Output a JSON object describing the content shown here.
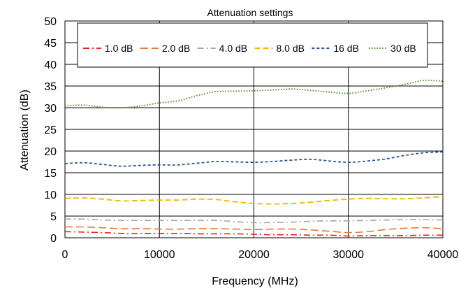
{
  "chart_data": {
    "type": "line",
    "title": "",
    "xlabel": "Frequency (MHz)",
    "ylabel": "Attenuation (dB)",
    "xlim": [
      0,
      40000
    ],
    "ylim": [
      0,
      50
    ],
    "x_ticks": [
      "0",
      "10000",
      "20000",
      "30000",
      "40000"
    ],
    "y_ticks": [
      "0",
      "5",
      "10",
      "15",
      "20",
      "25",
      "30",
      "35",
      "40",
      "45",
      "50"
    ],
    "grid": true,
    "legend": {
      "title": "Attenuation settings",
      "placement": "top-center"
    },
    "series": [
      {
        "name": "1.0 dB",
        "color": "#e8221c",
        "dash": "dash-dot",
        "points": [
          [
            0,
            1.4
          ],
          [
            2000,
            1.3
          ],
          [
            4000,
            1.2
          ],
          [
            6000,
            1.0
          ],
          [
            8000,
            1.0
          ],
          [
            10000,
            1.0
          ],
          [
            12000,
            1.0
          ],
          [
            14000,
            0.9
          ],
          [
            16000,
            0.9
          ],
          [
            18000,
            0.9
          ],
          [
            20000,
            0.8
          ],
          [
            22000,
            0.7
          ],
          [
            24000,
            0.7
          ],
          [
            26000,
            0.6
          ],
          [
            28000,
            0.6
          ],
          [
            30000,
            0.4
          ],
          [
            32000,
            0.5
          ],
          [
            34000,
            0.5
          ],
          [
            36000,
            0.5
          ],
          [
            38000,
            0.6
          ],
          [
            40000,
            0.6
          ]
        ]
      },
      {
        "name": "2.0 dB",
        "color": "#e07b39",
        "dash": "long-dash",
        "points": [
          [
            0,
            2.5
          ],
          [
            2000,
            2.5
          ],
          [
            4000,
            2.3
          ],
          [
            6000,
            2.1
          ],
          [
            8000,
            2.1
          ],
          [
            10000,
            2.0
          ],
          [
            12000,
            2.0
          ],
          [
            14000,
            2.1
          ],
          [
            16000,
            2.1
          ],
          [
            18000,
            2.0
          ],
          [
            20000,
            1.9
          ],
          [
            22000,
            2.0
          ],
          [
            24000,
            2.0
          ],
          [
            26000,
            1.8
          ],
          [
            28000,
            1.5
          ],
          [
            30000,
            1.2
          ],
          [
            32000,
            1.4
          ],
          [
            34000,
            1.9
          ],
          [
            36000,
            2.2
          ],
          [
            38000,
            2.3
          ],
          [
            40000,
            2.1
          ]
        ]
      },
      {
        "name": "4.0 dB",
        "color": "#a6a6a6",
        "dash": "dash-dot",
        "points": [
          [
            0,
            4.3
          ],
          [
            2000,
            4.3
          ],
          [
            4000,
            4.1
          ],
          [
            6000,
            4.0
          ],
          [
            8000,
            4.0
          ],
          [
            10000,
            4.0
          ],
          [
            12000,
            4.0
          ],
          [
            14000,
            4.0
          ],
          [
            16000,
            4.0
          ],
          [
            18000,
            3.7
          ],
          [
            20000,
            3.5
          ],
          [
            22000,
            3.5
          ],
          [
            24000,
            3.6
          ],
          [
            26000,
            3.8
          ],
          [
            28000,
            3.9
          ],
          [
            30000,
            3.9
          ],
          [
            32000,
            4.0
          ],
          [
            34000,
            4.1
          ],
          [
            36000,
            4.2
          ],
          [
            38000,
            4.2
          ],
          [
            40000,
            4.1
          ]
        ]
      },
      {
        "name": "8.0 dB",
        "color": "#f2b600",
        "dash": "dash",
        "points": [
          [
            0,
            9.1
          ],
          [
            2000,
            9.2
          ],
          [
            4000,
            8.9
          ],
          [
            6000,
            8.5
          ],
          [
            8000,
            8.6
          ],
          [
            10000,
            8.7
          ],
          [
            12000,
            8.7
          ],
          [
            14000,
            8.9
          ],
          [
            16000,
            8.8
          ],
          [
            18000,
            8.3
          ],
          [
            20000,
            7.9
          ],
          [
            22000,
            7.8
          ],
          [
            24000,
            7.9
          ],
          [
            26000,
            8.2
          ],
          [
            28000,
            8.6
          ],
          [
            30000,
            8.9
          ],
          [
            32000,
            9.1
          ],
          [
            34000,
            9.0
          ],
          [
            36000,
            9.0
          ],
          [
            38000,
            9.2
          ],
          [
            40000,
            9.5
          ]
        ]
      },
      {
        "name": "16 dB",
        "color": "#2e5597",
        "dash": "short-dash",
        "points": [
          [
            0,
            17.1
          ],
          [
            2000,
            17.3
          ],
          [
            4000,
            16.9
          ],
          [
            6000,
            16.5
          ],
          [
            8000,
            16.7
          ],
          [
            10000,
            16.8
          ],
          [
            12000,
            16.8
          ],
          [
            14000,
            17.2
          ],
          [
            16000,
            17.6
          ],
          [
            18000,
            17.5
          ],
          [
            20000,
            17.4
          ],
          [
            22000,
            17.6
          ],
          [
            24000,
            17.9
          ],
          [
            26000,
            18.1
          ],
          [
            28000,
            17.7
          ],
          [
            30000,
            17.4
          ],
          [
            32000,
            17.7
          ],
          [
            34000,
            18.2
          ],
          [
            36000,
            19.0
          ],
          [
            38000,
            19.6
          ],
          [
            40000,
            19.8
          ]
        ]
      },
      {
        "name": "30 dB",
        "color": "#4e8a2b",
        "dash": "dot",
        "points": [
          [
            0,
            30.4
          ],
          [
            2000,
            30.6
          ],
          [
            4000,
            30.1
          ],
          [
            6000,
            30.0
          ],
          [
            8000,
            30.4
          ],
          [
            10000,
            31.1
          ],
          [
            12000,
            31.6
          ],
          [
            14000,
            32.8
          ],
          [
            16000,
            33.7
          ],
          [
            18000,
            33.8
          ],
          [
            20000,
            33.9
          ],
          [
            22000,
            34.1
          ],
          [
            24000,
            34.3
          ],
          [
            26000,
            34.0
          ],
          [
            28000,
            33.6
          ],
          [
            30000,
            33.3
          ],
          [
            32000,
            33.9
          ],
          [
            34000,
            34.6
          ],
          [
            36000,
            35.4
          ],
          [
            38000,
            36.3
          ],
          [
            40000,
            36.1
          ]
        ]
      }
    ]
  }
}
